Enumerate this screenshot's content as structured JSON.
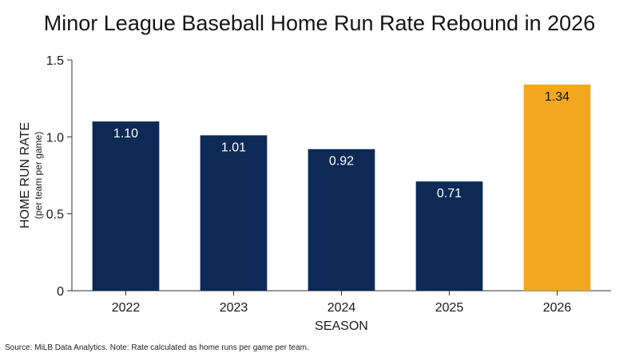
{
  "chart_data": {
    "type": "bar",
    "title": "Minor League Baseball Home Run Rate Rebound in 2026",
    "categories": [
      "2022",
      "2023",
      "2024",
      "2025",
      "2026"
    ],
    "values": [
      1.1,
      1.01,
      0.92,
      0.71,
      1.34
    ],
    "data_labels": [
      "1.10",
      "1.01",
      "0.92",
      "0.71",
      "1.34"
    ],
    "bar_colors": [
      "#0d2a57",
      "#0d2a57",
      "#0d2a57",
      "#0d2a57",
      "#f2a71e"
    ],
    "xlabel": "SEASON",
    "ylabel": "HOME RUN RATE",
    "ylabel_sub": "(per team per game)",
    "ylim": [
      0,
      1.5
    ],
    "yticks": [
      0,
      0.5,
      1.0,
      1.5
    ],
    "ytick_labels": [
      "0",
      "0.5",
      "1.0",
      "1.5"
    ],
    "grid": false,
    "legend": "none"
  },
  "footer": {
    "source": "Source: MiLB Data Analytics. Note: Rate calculated as home runs per game per team."
  },
  "colors": {
    "primary_bar": "#0d2a57",
    "highlight_bar": "#f2a71e"
  }
}
